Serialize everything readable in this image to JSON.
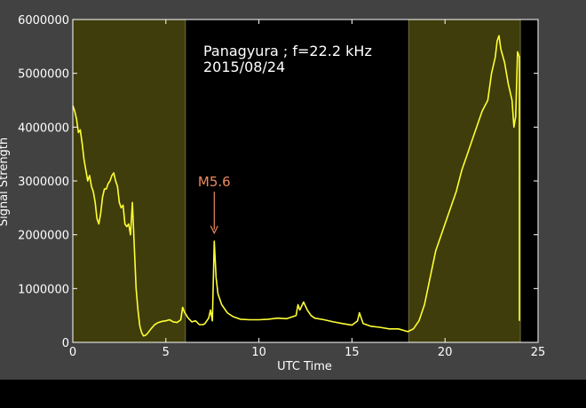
{
  "chart_data": {
    "type": "line",
    "title": "",
    "annotation_lines": [
      "Panagyura ; f=22.2 kHz",
      "2015/08/24"
    ],
    "xlabel": "UTC Time",
    "ylabel": "Signal Strength",
    "xlim": [
      0,
      25
    ],
    "ylim": [
      0,
      6000000
    ],
    "xticks": [
      0,
      5,
      10,
      15,
      20,
      25
    ],
    "yticks": [
      0,
      1000000,
      2000000,
      3000000,
      4000000,
      5000000,
      6000000
    ],
    "grid": false,
    "legend": "none",
    "shaded_regions": [
      {
        "x": [
          0,
          6.05
        ],
        "color": "#3f3d0b"
      },
      {
        "x": [
          18.05,
          24.05
        ],
        "color": "#3f3d0b"
      }
    ],
    "event": {
      "label": "M5.6",
      "x": 7.6,
      "y": 1900000,
      "color": "#f08a5d"
    },
    "series": [
      {
        "color": "#ffff33",
        "x": [
          0,
          0.1,
          0.2,
          0.3,
          0.4,
          0.5,
          0.6,
          0.7,
          0.8,
          0.9,
          1.0,
          1.1,
          1.2,
          1.3,
          1.4,
          1.5,
          1.6,
          1.7,
          1.8,
          1.9,
          2.0,
          2.1,
          2.2,
          2.3,
          2.4,
          2.5,
          2.6,
          2.7,
          2.8,
          2.9,
          3.0,
          3.1,
          3.2,
          3.3,
          3.4,
          3.5,
          3.6,
          3.7,
          3.8,
          3.9,
          4.0,
          4.2,
          4.4,
          4.6,
          4.8,
          5.0,
          5.2,
          5.4,
          5.6,
          5.8,
          5.9,
          6.0,
          6.2,
          6.4,
          6.6,
          6.8,
          7.0,
          7.1,
          7.2,
          7.3,
          7.4,
          7.5,
          7.6,
          7.7,
          7.8,
          8.0,
          8.3,
          8.6,
          9.0,
          9.5,
          10.0,
          10.5,
          11.0,
          11.5,
          12.0,
          12.1,
          12.2,
          12.4,
          12.6,
          12.8,
          13.0,
          13.5,
          14.0,
          14.5,
          15.0,
          15.3,
          15.4,
          15.6,
          16.0,
          16.5,
          17.0,
          17.5,
          18.0,
          18.3,
          18.6,
          18.9,
          19.2,
          19.5,
          19.8,
          20.0,
          20.3,
          20.6,
          20.9,
          21.2,
          21.5,
          21.8,
          22.0,
          22.3,
          22.5,
          22.7,
          22.8,
          22.9,
          23.0,
          23.2,
          23.4,
          23.6,
          23.7,
          23.8,
          23.9,
          24.0,
          24.0
        ],
        "y": [
          4400000,
          4300000,
          4150000,
          3900000,
          3950000,
          3700000,
          3400000,
          3200000,
          3000000,
          3100000,
          2900000,
          2800000,
          2600000,
          2300000,
          2200000,
          2400000,
          2700000,
          2850000,
          2850000,
          2950000,
          3000000,
          3100000,
          3150000,
          3000000,
          2900000,
          2600000,
          2500000,
          2550000,
          2200000,
          2150000,
          2200000,
          2000000,
          2600000,
          1800000,
          1000000,
          600000,
          300000,
          180000,
          120000,
          130000,
          160000,
          250000,
          330000,
          370000,
          390000,
          400000,
          420000,
          380000,
          370000,
          420000,
          650000,
          560000,
          450000,
          380000,
          400000,
          330000,
          330000,
          350000,
          400000,
          450000,
          600000,
          400000,
          1880000,
          1200000,
          900000,
          700000,
          550000,
          480000,
          430000,
          420000,
          420000,
          430000,
          450000,
          440000,
          500000,
          700000,
          600000,
          750000,
          600000,
          500000,
          450000,
          420000,
          380000,
          350000,
          320000,
          400000,
          550000,
          350000,
          300000,
          280000,
          250000,
          250000,
          200000,
          250000,
          400000,
          700000,
          1200000,
          1700000,
          2000000,
          2200000,
          2500000,
          2800000,
          3200000,
          3500000,
          3800000,
          4100000,
          4300000,
          4500000,
          5000000,
          5300000,
          5600000,
          5700000,
          5450000,
          5200000,
          4800000,
          4500000,
          4000000,
          4200000,
          5400000,
          5300000,
          400000
        ]
      }
    ]
  }
}
